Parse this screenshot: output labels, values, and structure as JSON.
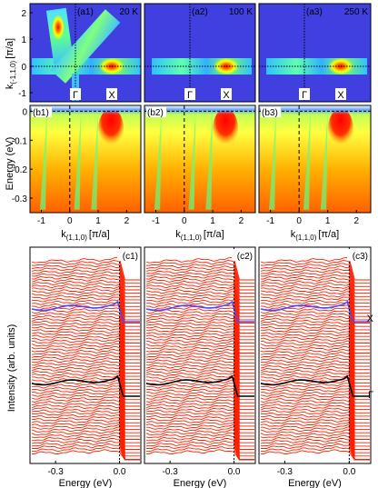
{
  "figure": {
    "row_a": {
      "panels": [
        {
          "label": "(a1)",
          "temperature": "20 K"
        },
        {
          "label": "(a2)",
          "temperature": "100 K"
        },
        {
          "label": "(a3)",
          "temperature": "250 K"
        }
      ],
      "ylabel_main": "k",
      "ylabel_sub": "(-1,1,0)",
      "ylabel_unit": "[π/a]",
      "yticks": [
        "2",
        "1",
        "0",
        "-1"
      ],
      "sym_gamma": "Γ",
      "sym_x": "X"
    },
    "row_b": {
      "panels": [
        {
          "label": "(b1)"
        },
        {
          "label": "(b2)"
        },
        {
          "label": "(b3)"
        }
      ],
      "ylabel": "Energy (eV)",
      "yticks": [
        "0",
        "-0.1",
        "-0.2",
        "-0.3"
      ],
      "xticks": [
        "-1",
        "0",
        "1",
        "2"
      ],
      "xlabel_main": "k",
      "xlabel_sub": "(1,1,0)",
      "xlabel_unit": "[π/a]"
    },
    "row_c": {
      "panels": [
        {
          "label": "(c1)"
        },
        {
          "label": "(c2)"
        },
        {
          "label": "(c3)"
        }
      ],
      "ylabel": "Intensity (arb. units)",
      "xticks": [
        "-0.3",
        "0.0"
      ],
      "xlabel": "Energy (eV)",
      "curve_x_label": "X",
      "curve_gamma_label": "Γ"
    },
    "colors": {
      "background_map": "#4040e0",
      "edc_lines": "#ff2000",
      "x_curve": "#4a4aff",
      "gamma_curve": "#000000"
    }
  }
}
